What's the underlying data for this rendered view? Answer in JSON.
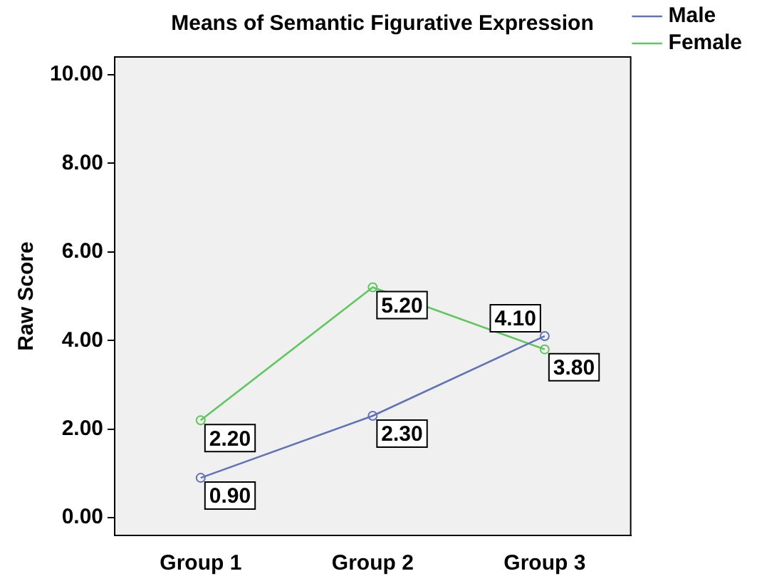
{
  "chart_data": {
    "type": "line",
    "title": "Means of Semantic Figurative Expression",
    "ylabel": "Raw Score",
    "categories": [
      "Group 1",
      "Group 2",
      "Group 3"
    ],
    "series": [
      {
        "name": "Male",
        "color": "#6272b8",
        "values": [
          0.9,
          2.3,
          4.1
        ],
        "value_labels": [
          "0.90",
          "2.30",
          "4.10"
        ]
      },
      {
        "name": "Female",
        "color": "#5ec85e",
        "values": [
          2.2,
          5.2,
          3.8
        ],
        "value_labels": [
          "2.20",
          "5.20",
          "3.80"
        ]
      }
    ],
    "ylim": [
      -0.4,
      10.4
    ],
    "yticks": [
      {
        "value": 0,
        "label": "0.00"
      },
      {
        "value": 2,
        "label": "2.00"
      },
      {
        "value": 4,
        "label": "4.00"
      },
      {
        "value": 6,
        "label": "6.00"
      },
      {
        "value": 8,
        "label": "8.00"
      },
      {
        "value": 10,
        "label": "10.00"
      }
    ],
    "legend": "top right",
    "marker": "circle",
    "grid": false
  }
}
